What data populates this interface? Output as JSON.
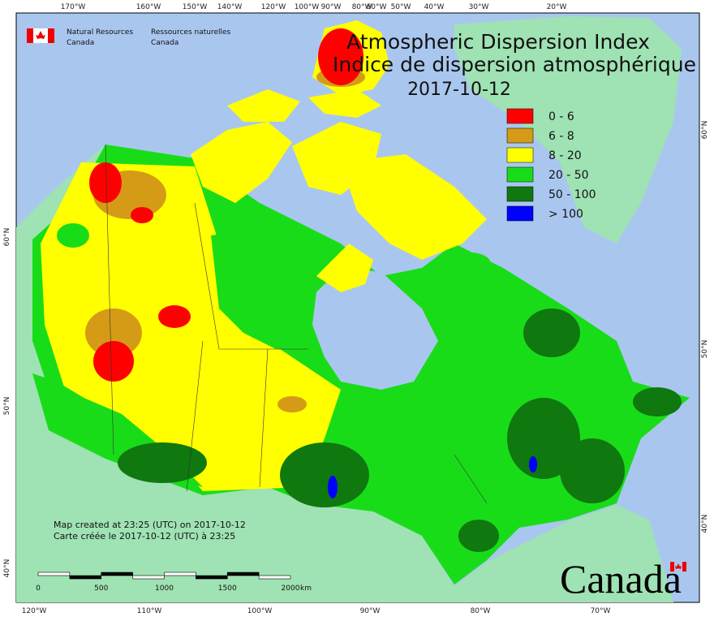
{
  "agency": {
    "en": [
      "Natural Resources",
      "Canada"
    ],
    "fr": [
      "Ressources naturelles",
      "Canada"
    ]
  },
  "title": {
    "line1": "Atmospheric Dispersion Index",
    "line2": "Indice de dispersion atmosphérique",
    "date": "2017-10-12"
  },
  "legend": [
    {
      "label": "0 - 6",
      "color": "#ff0000"
    },
    {
      "label": "6 - 8",
      "color": "#d59b17"
    },
    {
      "label": "8 - 20",
      "color": "#ffff00"
    },
    {
      "label": "20 - 50",
      "color": "#19dc19"
    },
    {
      "label": "50 - 100",
      "color": "#0f780f"
    },
    {
      "label": "> 100",
      "color": "#0000ff"
    }
  ],
  "notes": [
    "Map created at 23:25 (UTC) on 2017-10-12",
    "Carte créée le 2017-10-12 (UTC) à 23:25"
  ],
  "scale": {
    "labels": [
      "0",
      "500",
      "1000",
      "1500",
      "2000"
    ],
    "unit": "km"
  },
  "top_ticks": [
    "170°W",
    "160°W",
    "150°W",
    "140°W",
    "120°W",
    "100°W",
    "90°W",
    "80°W",
    "60°W",
    "50°W",
    "40°W",
    "30°W",
    "20°W"
  ],
  "bottom_ticks": [
    "120°W",
    "110°W",
    "100°W",
    "90°W",
    "80°W",
    "70°W"
  ],
  "left_ticks": [
    "60°N",
    "50°N",
    "40°N"
  ],
  "right_ticks": [
    "60°N",
    "50°N",
    "40°N"
  ],
  "wordmark": "Canada"
}
